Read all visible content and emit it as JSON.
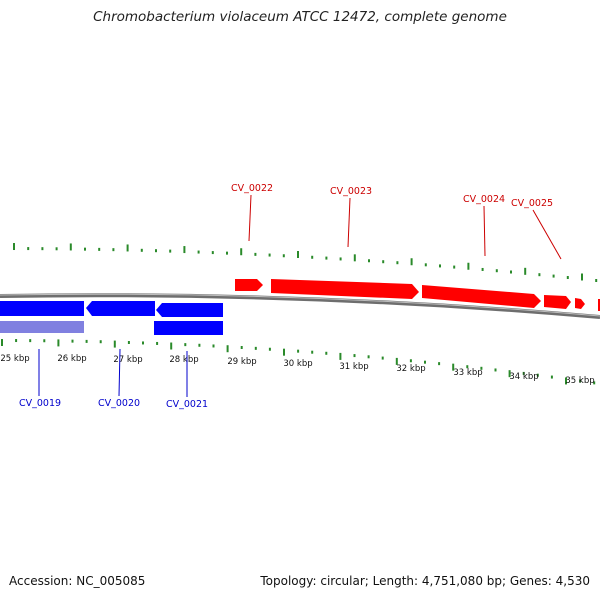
{
  "title": "Chromobacterium violaceum ATCC 12472, complete genome",
  "footer": {
    "accession": "Accession: NC_005085",
    "summary": "Topology: circular; Length: 4,751,080 bp; Genes: 4,530"
  },
  "colors": {
    "forward_gene": "#ff0000",
    "reverse_gene": "#0000ff",
    "reverse_gene_light": "#8080e0",
    "tick": "#2a8a2a",
    "backbone": "#7a7a7a",
    "forward_label": "#cc0000",
    "reverse_label": "#0000cc"
  },
  "kbp_labels": [
    "25 kbp",
    "26 kbp",
    "27 kbp",
    "28 kbp",
    "29 kbp",
    "30 kbp",
    "31 kbp",
    "32 kbp",
    "33 kbp",
    "34 kbp",
    "35 kbp"
  ],
  "forward_genes": [
    "CV_0022",
    "CV_0023",
    "CV_0024",
    "CV_0025"
  ],
  "reverse_genes": [
    "CV_0019",
    "CV_0020",
    "CV_0021"
  ]
}
